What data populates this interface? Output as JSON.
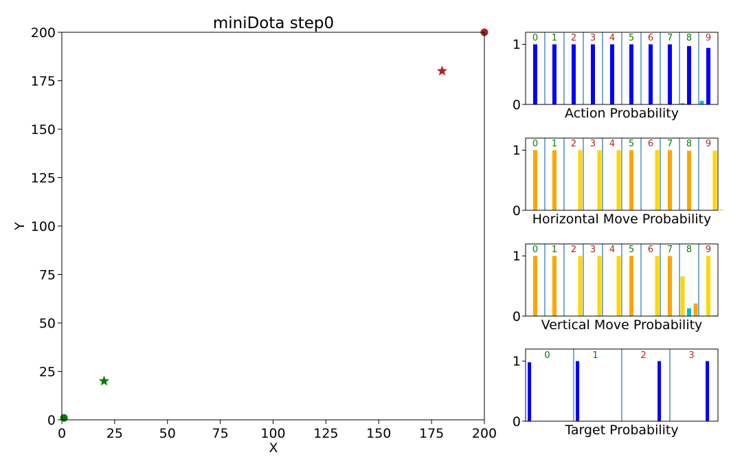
{
  "colors": {
    "green": "#008000",
    "red": "#b22222",
    "blue": "#0000ff",
    "cyan": "#00bcd4",
    "orange": "#ffa500",
    "yellow": "#ffd700",
    "divider": "#4a8fc4"
  },
  "chart_data": [
    {
      "type": "scatter",
      "title": "miniDota step0",
      "xlabel": "X",
      "ylabel": "Y",
      "xlim": [
        0,
        200
      ],
      "ylim": [
        0,
        200
      ],
      "xticks": [
        "0",
        "25",
        "50",
        "75",
        "100",
        "125",
        "150",
        "175",
        "200"
      ],
      "yticks": [
        "0",
        "25",
        "50",
        "75",
        "100",
        "125",
        "150",
        "175",
        "200"
      ],
      "series": [
        {
          "marker": "circle",
          "color": "green",
          "points": [
            [
              1,
              1
            ]
          ]
        },
        {
          "marker": "star",
          "color": "green",
          "points": [
            [
              20,
              20
            ]
          ]
        },
        {
          "marker": "star",
          "color": "red",
          "points": [
            [
              180,
              180
            ]
          ]
        },
        {
          "marker": "circle",
          "color": "red",
          "points": [
            [
              200,
              200
            ]
          ]
        }
      ]
    },
    {
      "type": "bar",
      "xlabel": "Action Probability",
      "ylim": [
        0,
        1.2
      ],
      "yticks": [
        "0",
        "1"
      ],
      "group_labels": [
        "0",
        "1",
        "2",
        "3",
        "4",
        "5",
        "6",
        "7",
        "8",
        "9"
      ],
      "group_label_colors": [
        "green",
        "green",
        "red",
        "red",
        "red",
        "green",
        "red",
        "green",
        "green",
        "red"
      ],
      "bars": [
        {
          "group": 0,
          "slot": 0,
          "value": 1.0,
          "color": "blue"
        },
        {
          "group": 1,
          "slot": 0,
          "value": 1.0,
          "color": "blue"
        },
        {
          "group": 2,
          "slot": 0,
          "value": 1.0,
          "color": "blue"
        },
        {
          "group": 3,
          "slot": 0,
          "value": 1.0,
          "color": "blue"
        },
        {
          "group": 4,
          "slot": 0,
          "value": 1.0,
          "color": "blue"
        },
        {
          "group": 5,
          "slot": 0,
          "value": 1.0,
          "color": "blue"
        },
        {
          "group": 6,
          "slot": 0,
          "value": 1.0,
          "color": "blue"
        },
        {
          "group": 7,
          "slot": 0,
          "value": 1.0,
          "color": "blue"
        },
        {
          "group": 8,
          "slot": -1,
          "value": 0.02,
          "color": "cyan"
        },
        {
          "group": 8,
          "slot": 0,
          "value": 0.97,
          "color": "blue"
        },
        {
          "group": 9,
          "slot": -1,
          "value": 0.06,
          "color": "cyan"
        },
        {
          "group": 9,
          "slot": 0,
          "value": 0.94,
          "color": "blue"
        }
      ]
    },
    {
      "type": "bar",
      "xlabel": "Horizontal Move Probability",
      "ylim": [
        0,
        1.2
      ],
      "yticks": [
        "0",
        "1"
      ],
      "group_labels": [
        "0",
        "1",
        "2",
        "3",
        "4",
        "5",
        "6",
        "7",
        "8",
        "9"
      ],
      "group_label_colors": [
        "green",
        "green",
        "red",
        "red",
        "red",
        "green",
        "red",
        "green",
        "green",
        "red"
      ],
      "bars": [
        {
          "group": 0,
          "slot": 0,
          "value": 1.0,
          "color": "orange"
        },
        {
          "group": 1,
          "slot": 0,
          "value": 1.0,
          "color": "orange"
        },
        {
          "group": 2,
          "slot": 1,
          "value": 1.0,
          "color": "yellow"
        },
        {
          "group": 3,
          "slot": 1,
          "value": 1.0,
          "color": "yellow"
        },
        {
          "group": 4,
          "slot": 1,
          "value": 1.0,
          "color": "yellow"
        },
        {
          "group": 5,
          "slot": 0,
          "value": 1.0,
          "color": "orange"
        },
        {
          "group": 6,
          "slot": 1,
          "value": 1.0,
          "color": "yellow"
        },
        {
          "group": 7,
          "slot": 0,
          "value": 1.0,
          "color": "orange"
        },
        {
          "group": 8,
          "slot": -1,
          "value": 0.01,
          "color": "cyan"
        },
        {
          "group": 8,
          "slot": 0,
          "value": 0.99,
          "color": "orange"
        },
        {
          "group": 9,
          "slot": 1,
          "value": 0.99,
          "color": "yellow"
        },
        {
          "group": 9,
          "slot": 2,
          "value": 0.01,
          "color": "orange"
        }
      ]
    },
    {
      "type": "bar",
      "xlabel": "Vertical Move Probability",
      "ylim": [
        0,
        1.2
      ],
      "yticks": [
        "0",
        "1"
      ],
      "group_labels": [
        "0",
        "1",
        "2",
        "3",
        "4",
        "5",
        "6",
        "7",
        "8",
        "9"
      ],
      "group_label_colors": [
        "green",
        "green",
        "red",
        "red",
        "red",
        "green",
        "red",
        "green",
        "green",
        "red"
      ],
      "bars": [
        {
          "group": 0,
          "slot": 0,
          "value": 1.0,
          "color": "orange"
        },
        {
          "group": 1,
          "slot": 0,
          "value": 1.0,
          "color": "orange"
        },
        {
          "group": 2,
          "slot": 1,
          "value": 1.0,
          "color": "yellow"
        },
        {
          "group": 3,
          "slot": 1,
          "value": 1.0,
          "color": "yellow"
        },
        {
          "group": 4,
          "slot": 1,
          "value": 1.0,
          "color": "yellow"
        },
        {
          "group": 5,
          "slot": 0,
          "value": 1.0,
          "color": "orange"
        },
        {
          "group": 6,
          "slot": 1,
          "value": 1.0,
          "color": "yellow"
        },
        {
          "group": 7,
          "slot": 0,
          "value": 1.0,
          "color": "orange"
        },
        {
          "group": 8,
          "slot": -1,
          "value": 0.66,
          "color": "yellow"
        },
        {
          "group": 8,
          "slot": 0,
          "value": 0.13,
          "color": "cyan"
        },
        {
          "group": 8,
          "slot": 1,
          "value": 0.21,
          "color": "orange"
        },
        {
          "group": 9,
          "slot": 0,
          "value": 1.0,
          "color": "yellow"
        },
        {
          "group": 9,
          "slot": 1,
          "value": 0.01,
          "color": "cyan"
        }
      ]
    },
    {
      "type": "bar",
      "xlabel": "Target Probability",
      "ylim": [
        0,
        1.2
      ],
      "yticks": [
        "0",
        "1"
      ],
      "group_labels": [
        "0",
        "1",
        "2",
        "3"
      ],
      "group_label_colors": [
        "green",
        "green",
        "red",
        "red"
      ],
      "bars": [
        {
          "group": 0,
          "pos": 0.08,
          "value": 0.98,
          "color": "blue"
        },
        {
          "group": 1,
          "pos": 0.08,
          "value": 1.0,
          "color": "blue"
        },
        {
          "group": 2,
          "pos": 0.78,
          "value": 1.0,
          "color": "blue"
        },
        {
          "group": 3,
          "pos": 0.78,
          "value": 1.0,
          "color": "blue"
        }
      ]
    }
  ]
}
